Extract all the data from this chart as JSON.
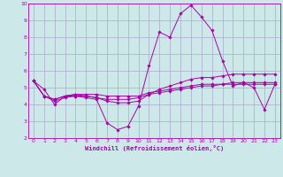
{
  "title": "",
  "xlabel": "Windchill (Refroidissement éolien,°C)",
  "ylabel": "",
  "bg_color": "#cce8e8",
  "line_color": "#aa00aa",
  "grid_color": "#aaaacc",
  "xmin": 0,
  "xmax": 23,
  "ymin": 2,
  "ymax": 10,
  "series": [
    [
      5.4,
      4.9,
      4.0,
      4.5,
      4.5,
      4.4,
      4.3,
      2.9,
      2.5,
      2.7,
      3.9,
      6.3,
      8.3,
      8.0,
      9.4,
      9.9,
      9.2,
      8.4,
      6.6,
      5.1,
      5.3,
      5.0,
      3.7,
      5.2
    ],
    [
      5.4,
      4.5,
      4.3,
      4.5,
      4.6,
      4.5,
      4.4,
      4.3,
      4.3,
      4.3,
      4.4,
      4.6,
      4.7,
      4.8,
      4.9,
      5.0,
      5.1,
      5.1,
      5.2,
      5.2,
      5.2,
      5.2,
      5.2,
      5.2
    ],
    [
      5.4,
      4.5,
      4.2,
      4.4,
      4.5,
      4.5,
      4.4,
      4.2,
      4.1,
      4.1,
      4.2,
      4.6,
      4.9,
      5.1,
      5.3,
      5.5,
      5.6,
      5.6,
      5.7,
      5.8,
      5.8,
      5.8,
      5.8,
      5.8
    ],
    [
      5.4,
      4.5,
      4.3,
      4.5,
      4.6,
      4.6,
      4.6,
      4.5,
      4.5,
      4.5,
      4.5,
      4.7,
      4.8,
      4.9,
      5.0,
      5.1,
      5.2,
      5.2,
      5.2,
      5.3,
      5.3,
      5.3,
      5.3,
      5.3
    ]
  ]
}
